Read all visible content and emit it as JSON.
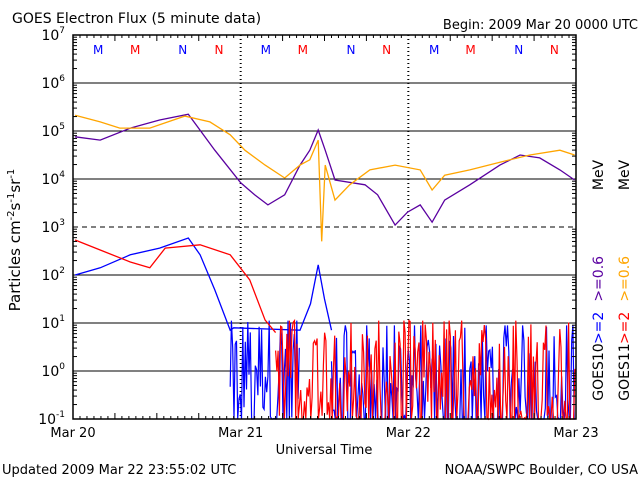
{
  "title": "GOES Electron Flux (5 minute data)",
  "begin": "Begin: 2009 Mar 20 0000 UTC",
  "updated": "Updated 2009 Mar 22 23:55:02 UTC",
  "source": "NOAA/SWPC Boulder, CO USA",
  "chart_data": {
    "type": "line",
    "title": "GOES Electron Flux (5 minute data)",
    "xlabel": "Universal Time",
    "ylabel": "Particles cm-2s-1sr-1",
    "ylabel_parts": [
      "Particles cm",
      "-2",
      "s",
      "-1",
      "sr",
      "-1"
    ],
    "yscale": "log",
    "ylim_log10": [
      -1,
      7
    ],
    "ytick_exponents": [
      "7",
      "6",
      "5",
      "4",
      "3",
      "2",
      "1",
      "0",
      "-1"
    ],
    "xlim_hours": [
      0,
      72
    ],
    "xticks": [
      {
        "h": 0,
        "label": "Mar 20"
      },
      {
        "h": 24,
        "label": "Mar 21"
      },
      {
        "h": 48,
        "label": "Mar 22"
      },
      {
        "h": 72,
        "label": "Mar 23"
      }
    ],
    "grid": "horizontal at each decade; 10^3 dashed",
    "markers": [
      {
        "h": 3.6,
        "label": "M",
        "color": "#0000ff"
      },
      {
        "h": 8.9,
        "label": "M",
        "color": "#ff0000"
      },
      {
        "h": 15.7,
        "label": "N",
        "color": "#0000ff"
      },
      {
        "h": 20.9,
        "label": "N",
        "color": "#ff0000"
      },
      {
        "h": 27.6,
        "label": "M",
        "color": "#0000ff"
      },
      {
        "h": 32.9,
        "label": "M",
        "color": "#ff0000"
      },
      {
        "h": 39.8,
        "label": "N",
        "color": "#0000ff"
      },
      {
        "h": 44.9,
        "label": "N",
        "color": "#ff0000"
      },
      {
        "h": 51.7,
        "label": "M",
        "color": "#0000ff"
      },
      {
        "h": 56.9,
        "label": "M",
        "color": "#ff0000"
      },
      {
        "h": 63.8,
        "label": "N",
        "color": "#0000ff"
      },
      {
        "h": 68.9,
        "label": "N",
        "color": "#ff0000"
      }
    ],
    "legend": {
      "energy_labels": [
        ">=2",
        ">=0.6",
        "MeV"
      ],
      "satellites": [
        "GOES10",
        "GOES11"
      ],
      "placement": "right"
    },
    "series": [
      {
        "name": "GOES10 >=0.6 MeV",
        "color": "#5a00a0",
        "h": [
          0.3,
          3.9,
          8.2,
          12.4,
          16.5,
          20.3,
          24.0,
          26.0,
          27.9,
          30.3,
          32.5,
          33.9,
          35.1,
          36.1,
          37.5,
          41.8,
          43.6,
          46.1,
          47.9,
          49.7,
          51.4,
          53.2,
          56.8,
          61.1,
          64.0,
          66.8,
          69.7,
          71.8
        ],
        "log10": [
          4.88,
          4.81,
          5.06,
          5.23,
          5.35,
          4.6,
          3.92,
          3.67,
          3.46,
          3.67,
          4.29,
          4.6,
          5.02,
          4.6,
          3.98,
          3.88,
          3.67,
          3.04,
          3.31,
          3.46,
          3.1,
          3.56,
          3.88,
          4.29,
          4.5,
          4.44,
          4.19,
          3.98
        ]
      },
      {
        "name": "GOES11 >=0.6 MeV",
        "color": "#ffa500",
        "h": [
          0.3,
          3.9,
          6.7,
          11.0,
          16.0,
          19.6,
          22.5,
          24.6,
          27.5,
          30.3,
          32.5,
          33.9,
          35.1,
          35.6,
          36.1,
          37.5,
          39.6,
          42.5,
          46.1,
          49.7,
          51.4,
          53.2,
          56.8,
          61.1,
          65.4,
          69.7,
          71.8
        ],
        "log10": [
          5.33,
          5.19,
          5.06,
          5.06,
          5.31,
          5.19,
          4.92,
          4.6,
          4.29,
          4.02,
          4.29,
          4.4,
          4.81,
          2.7,
          4.29,
          3.56,
          3.88,
          4.19,
          4.29,
          4.19,
          3.77,
          4.08,
          4.19,
          4.35,
          4.5,
          4.6,
          4.5
        ]
      },
      {
        "name": "GOES10 >=2 MeV",
        "color": "#0000ff",
        "h": [
          0.3,
          3.9,
          8.2,
          12.4,
          16.5,
          18.2,
          20.3,
          22.5,
          23.0,
          32.5,
          34.0,
          35.1,
          36.0,
          37.0
        ],
        "log10": [
          2.0,
          2.15,
          2.42,
          2.56,
          2.77,
          2.42,
          1.69,
          0.85,
          0.9,
          0.85,
          1.4,
          2.21,
          1.5,
          0.85
        ],
        "noise": [
          {
            "h": [
              22.5,
              32.5
            ],
            "log10": [
              -1,
              1.0
            ]
          },
          {
            "h": [
              37,
              72
            ],
            "log10": [
              -1,
              0.9
            ]
          }
        ]
      },
      {
        "name": "GOES11 >=2 MeV",
        "color": "#ff0000",
        "h": [
          0.3,
          3.9,
          8.2,
          11.0,
          13.2,
          18.2,
          22.5,
          25.3,
          27.5,
          29.0
        ],
        "log10": [
          2.73,
          2.52,
          2.27,
          2.15,
          2.56,
          2.63,
          2.42,
          1.9,
          1.06,
          0.8
        ],
        "noise": [
          {
            "h": [
              29,
              72
            ],
            "log10": [
              -1,
              1.0
            ]
          }
        ]
      }
    ]
  }
}
